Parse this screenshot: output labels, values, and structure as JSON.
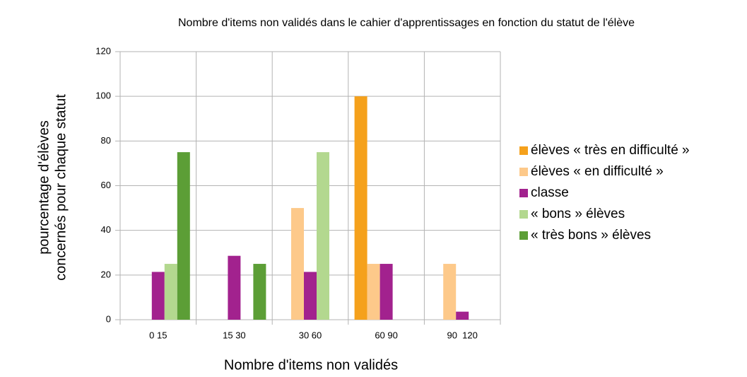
{
  "chart_data": {
    "type": "bar",
    "title": "Nombre d'items non validés dans le cahier d'apprentissages en fonction du statut de l'élève",
    "xlabel": "Nombre d'items non validés",
    "ylabel": [
      "pourcentage d'élèves",
      "concernés pour chaque statut"
    ],
    "categories": [
      "0 15",
      "15 30",
      "30 60",
      "60 90",
      "90  120"
    ],
    "series": [
      {
        "name": "élèves « très en difficulté »",
        "color": "#f5a11c",
        "values": [
          0,
          0,
          0,
          100,
          0
        ]
      },
      {
        "name": "élèves « en difficulté »",
        "color": "#fdc98a",
        "values": [
          0,
          0,
          50,
          25,
          25
        ]
      },
      {
        "name": "classe",
        "color": "#a2228e",
        "values": [
          21.4,
          28.6,
          21.4,
          25,
          3.6
        ]
      },
      {
        "name": "« bons » élèves",
        "color": "#b3d88f",
        "values": [
          25,
          0,
          75,
          0,
          0
        ]
      },
      {
        "name": "« très bons » élèves",
        "color": "#5c9e36",
        "values": [
          75,
          25,
          0,
          0,
          0
        ]
      }
    ],
    "ylim": [
      0,
      120
    ],
    "yticks": [
      0,
      20,
      40,
      60,
      80,
      100,
      120
    ],
    "grid": true,
    "legend": "right"
  }
}
